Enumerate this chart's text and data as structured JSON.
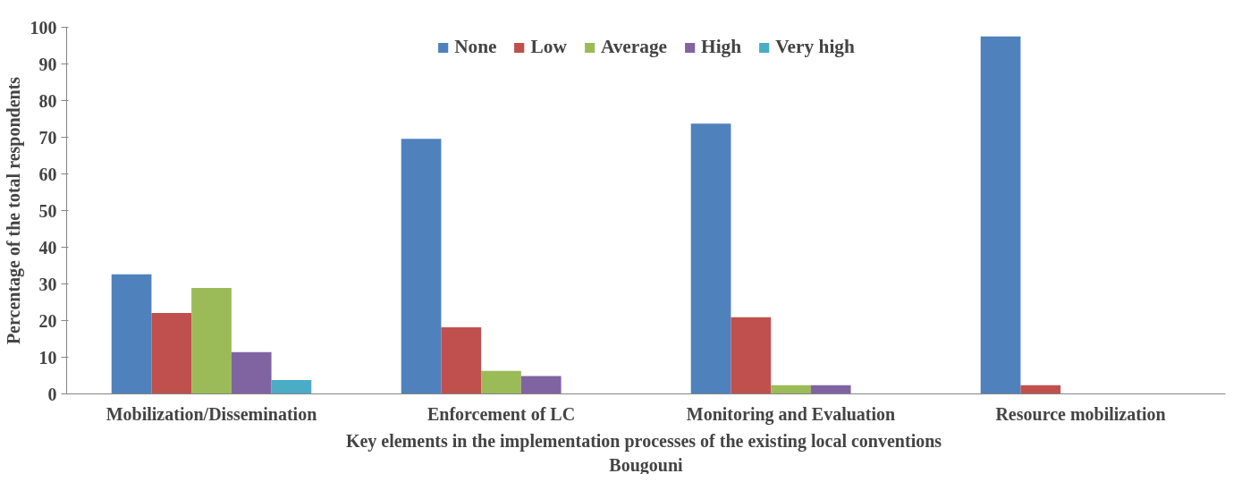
{
  "chart_data": {
    "type": "bar",
    "xlabel": "Key elements in the implementation  processes of the existing local conventions",
    "ylabel": "Percentage of the total respondents",
    "annotations": [
      "Bougouni"
    ],
    "categories": [
      "Mobilization/Dissemination",
      "Enforcement of LC",
      "Monitoring and Evaluation",
      "Resource mobilization"
    ],
    "series": [
      {
        "name": "None",
        "color": "#4f81bd",
        "values": [
          32.6,
          69.6,
          73.7,
          97.5
        ]
      },
      {
        "name": "Low",
        "color": "#c0504d",
        "values": [
          22.1,
          18.2,
          20.9,
          2.4
        ]
      },
      {
        "name": "Average",
        "color": "#9bbb59",
        "values": [
          28.9,
          6.3,
          2.4,
          0
        ]
      },
      {
        "name": "High",
        "color": "#8064a2",
        "values": [
          11.4,
          4.9,
          2.4,
          0
        ]
      },
      {
        "name": "Very high",
        "color": "#4bacc6",
        "values": [
          3.8,
          0,
          0,
          0
        ]
      }
    ],
    "ylim": [
      0,
      100
    ],
    "yticks": [
      0,
      10,
      20,
      30,
      40,
      50,
      60,
      70,
      80,
      90,
      100
    ],
    "grid": false,
    "legend": "top"
  }
}
